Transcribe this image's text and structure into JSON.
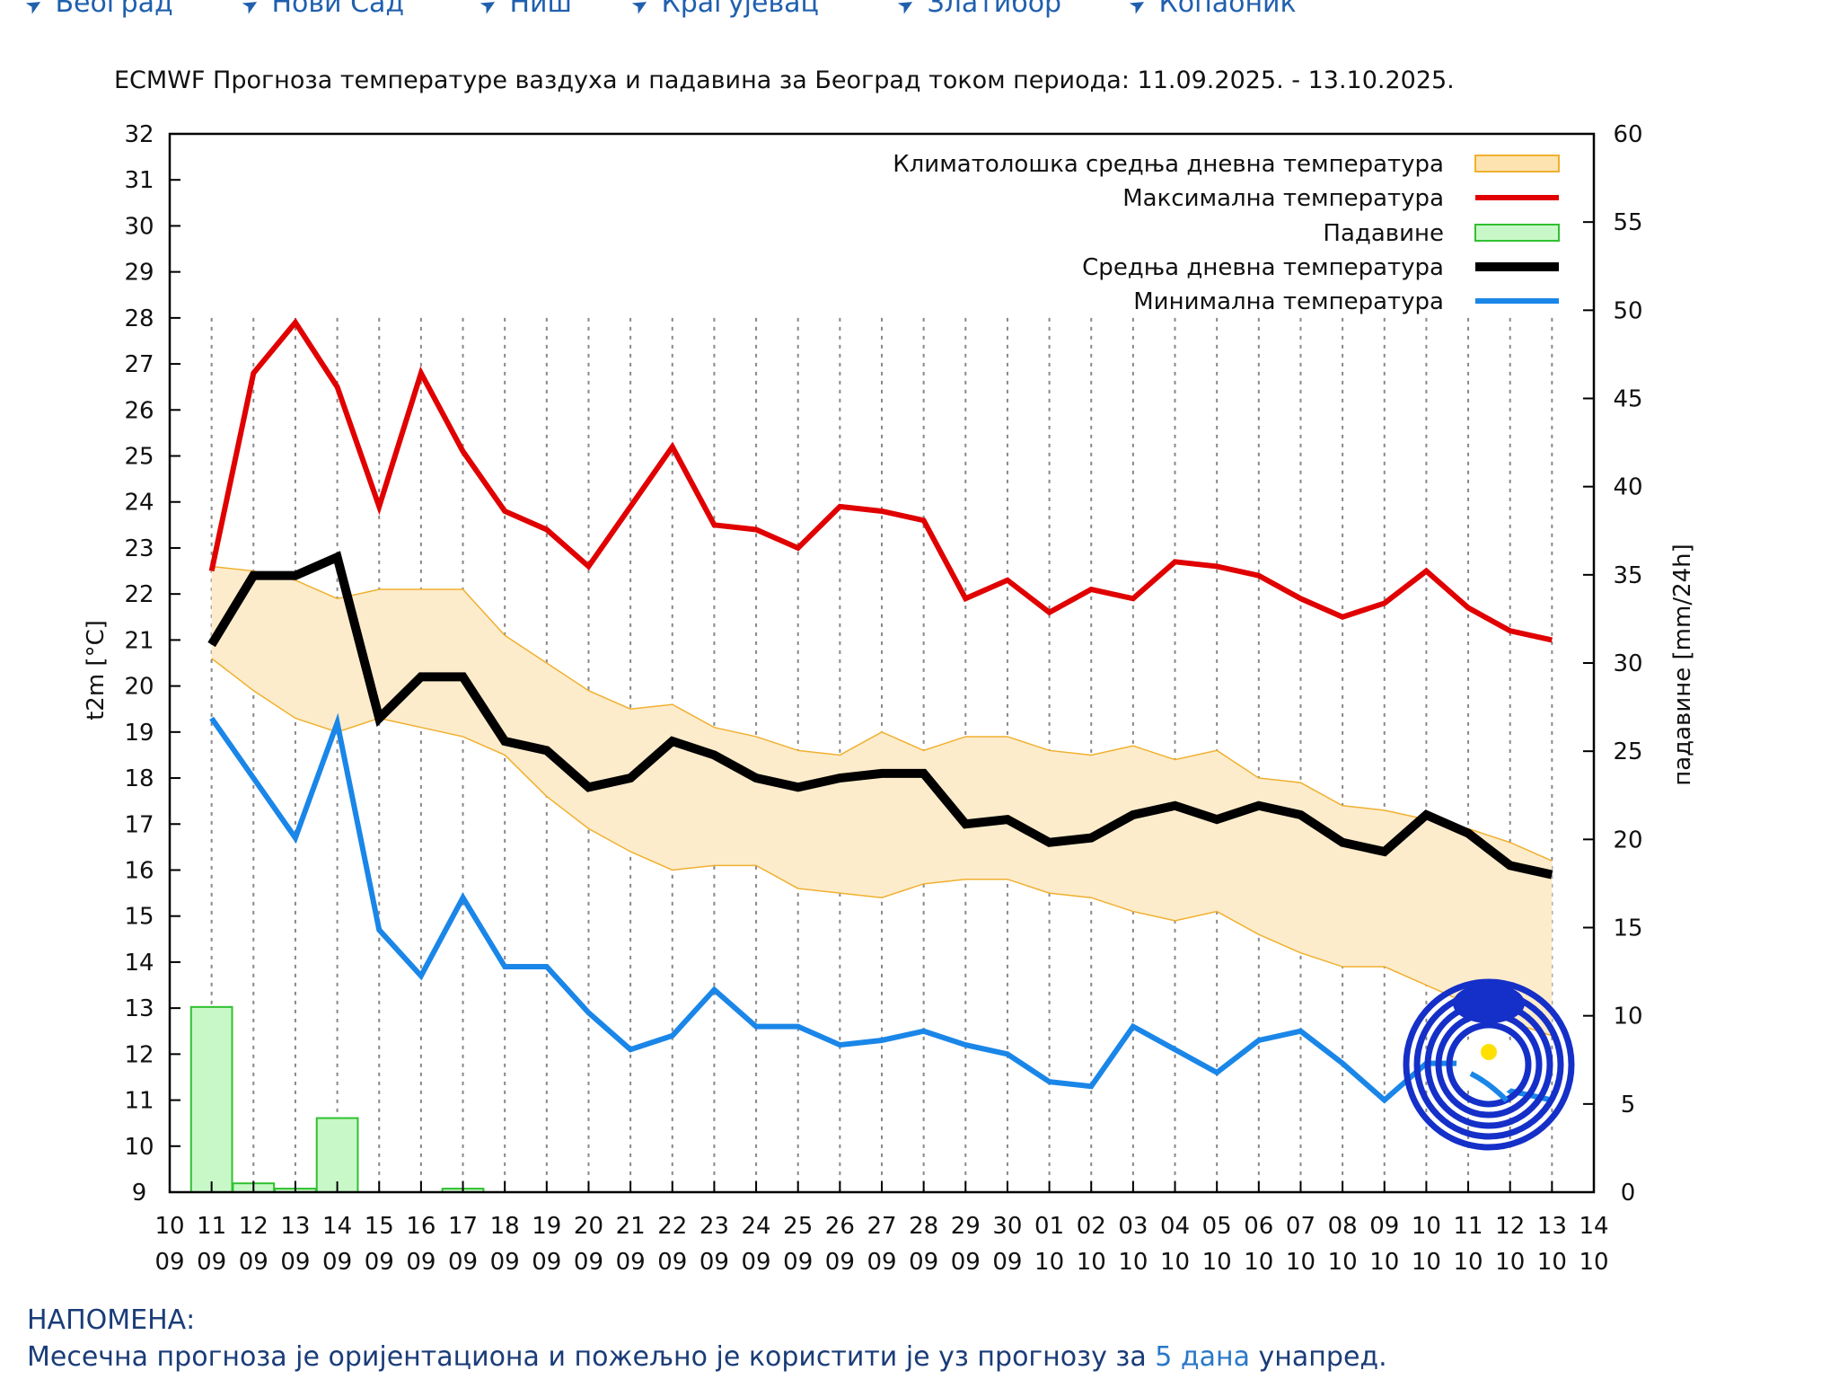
{
  "nav": {
    "items": [
      {
        "label": "Београд",
        "icon": "arrow-icon"
      },
      {
        "label": "Нови Сад",
        "icon": "arrow-icon"
      },
      {
        "label": "Ниш",
        "icon": "arrow-icon"
      },
      {
        "label": "Крагујевац",
        "icon": "arrow-icon"
      },
      {
        "label": "Златибор",
        "icon": "arrow-icon"
      },
      {
        "label": "Копаоник",
        "icon": "arrow-icon"
      }
    ]
  },
  "chart_data": {
    "type": "line",
    "title": "ECMWF Прогноза температуре ваздуха и падавина за Београд током периода: 11.09.2025. - 13.10.2025.",
    "ylabel": "t2m [°C]",
    "y2label": "падавине [mm/24h]",
    "ylim": [
      9,
      32
    ],
    "y2lim": [
      0,
      60
    ],
    "yticks": [
      9,
      10,
      11,
      12,
      13,
      14,
      15,
      16,
      17,
      18,
      19,
      20,
      21,
      22,
      23,
      24,
      25,
      26,
      27,
      28,
      29,
      30,
      31,
      32
    ],
    "y2ticks": [
      0,
      5,
      10,
      15,
      20,
      25,
      30,
      35,
      40,
      45,
      50,
      55,
      60
    ],
    "xticks": [
      [
        "10",
        "09"
      ],
      [
        "11",
        "09"
      ],
      [
        "12",
        "09"
      ],
      [
        "13",
        "09"
      ],
      [
        "14",
        "09"
      ],
      [
        "15",
        "09"
      ],
      [
        "16",
        "09"
      ],
      [
        "17",
        "09"
      ],
      [
        "18",
        "09"
      ],
      [
        "19",
        "09"
      ],
      [
        "20",
        "09"
      ],
      [
        "21",
        "09"
      ],
      [
        "22",
        "09"
      ],
      [
        "23",
        "09"
      ],
      [
        "24",
        "09"
      ],
      [
        "25",
        "09"
      ],
      [
        "26",
        "09"
      ],
      [
        "27",
        "09"
      ],
      [
        "28",
        "09"
      ],
      [
        "29",
        "09"
      ],
      [
        "30",
        "09"
      ],
      [
        "01",
        "10"
      ],
      [
        "02",
        "10"
      ],
      [
        "03",
        "10"
      ],
      [
        "04",
        "10"
      ],
      [
        "05",
        "10"
      ],
      [
        "06",
        "10"
      ],
      [
        "07",
        "10"
      ],
      [
        "08",
        "10"
      ],
      [
        "09",
        "10"
      ],
      [
        "10",
        "10"
      ],
      [
        "11",
        "10"
      ],
      [
        "12",
        "10"
      ],
      [
        "13",
        "10"
      ],
      [
        "14",
        "10"
      ]
    ],
    "x": [
      "11.09",
      "12.09",
      "13.09",
      "14.09",
      "15.09",
      "16.09",
      "17.09",
      "18.09",
      "19.09",
      "20.09",
      "21.09",
      "22.09",
      "23.09",
      "24.09",
      "25.09",
      "26.09",
      "27.09",
      "28.09",
      "29.09",
      "30.09",
      "01.10",
      "02.10",
      "03.10",
      "04.10",
      "05.10",
      "06.10",
      "07.10",
      "08.10",
      "09.10",
      "10.10",
      "11.10",
      "12.10",
      "13.10"
    ],
    "grid": "vertical dashed",
    "legend_placement": "top-right",
    "climatology": {
      "name": "Климатолошка средња дневна температура",
      "color": "#fdeccb",
      "edge_color": "#f0b030",
      "upper": [
        22.6,
        22.5,
        22.3,
        21.9,
        22.1,
        22.1,
        22.1,
        21.1,
        20.5,
        19.9,
        19.5,
        19.6,
        19.1,
        18.9,
        18.6,
        18.5,
        19.0,
        18.6,
        18.9,
        18.9,
        18.6,
        18.5,
        18.7,
        18.4,
        18.6,
        18.0,
        17.9,
        17.4,
        17.3,
        17.1,
        16.9,
        16.6,
        16.2
      ],
      "lower": [
        20.6,
        19.9,
        19.3,
        19.0,
        19.3,
        19.1,
        18.9,
        18.5,
        17.6,
        16.9,
        16.4,
        16.0,
        16.1,
        16.1,
        15.6,
        15.5,
        15.4,
        15.7,
        15.8,
        15.8,
        15.5,
        15.4,
        15.1,
        14.9,
        15.1,
        14.6,
        14.2,
        13.9,
        13.9,
        13.5,
        13.1,
        12.7,
        12.4
      ]
    },
    "series": [
      {
        "name": "Максимална температура",
        "color": "#e00000",
        "values": [
          22.5,
          26.8,
          27.9,
          26.5,
          23.9,
          26.8,
          25.1,
          23.8,
          23.4,
          22.6,
          23.9,
          25.2,
          23.5,
          23.4,
          23.0,
          23.9,
          23.8,
          23.6,
          21.9,
          22.3,
          21.6,
          22.1,
          21.9,
          22.7,
          22.6,
          22.4,
          21.9,
          21.5,
          21.8,
          22.5,
          21.7,
          21.2,
          21.0
        ]
      },
      {
        "name": "Средња дневна температура",
        "color": "#000000",
        "values": [
          20.9,
          22.4,
          22.4,
          22.8,
          19.3,
          20.2,
          20.2,
          18.8,
          18.6,
          17.8,
          18.0,
          18.8,
          18.5,
          18.0,
          17.8,
          18.0,
          18.1,
          18.1,
          17.0,
          17.1,
          16.6,
          16.7,
          17.2,
          17.4,
          17.1,
          17.4,
          17.2,
          16.6,
          16.4,
          17.2,
          16.8,
          16.1,
          15.9
        ]
      },
      {
        "name": "Минимална температура",
        "color": "#1a86e8",
        "values": [
          19.3,
          18.0,
          16.7,
          19.2,
          14.7,
          13.7,
          15.4,
          13.9,
          13.9,
          12.9,
          12.1,
          12.4,
          13.4,
          12.6,
          12.6,
          12.2,
          12.3,
          12.5,
          12.2,
          12.0,
          11.4,
          11.3,
          12.6,
          12.1,
          11.6,
          12.3,
          12.5,
          11.8,
          11.0,
          11.8,
          11.8,
          11.2,
          11.0
        ]
      }
    ],
    "precipitation": {
      "name": "Падавине",
      "color": "#c8f8c8",
      "edge_color": "#30c030",
      "axis": "right",
      "values": [
        10.5,
        0.5,
        0.2,
        4.2,
        0,
        0,
        0.2,
        0,
        0,
        0,
        0,
        0,
        0,
        0,
        0,
        0,
        0,
        0,
        0,
        0,
        0,
        0,
        0,
        0,
        0,
        0,
        0,
        0,
        0,
        0,
        0,
        0,
        0
      ]
    },
    "legend_order": [
      "Климатолошка средња дневна температура",
      "Максимална температура",
      "Падавине",
      "Средња дневна температура",
      "Минимална температура"
    ]
  },
  "notes": {
    "heading": "НАПОМЕНА:",
    "text_before": "Месечна прогноза је оријентациона и пожељно је користити је уз прогнозу за ",
    "link": "5 дана",
    "text_after": " унапред."
  }
}
